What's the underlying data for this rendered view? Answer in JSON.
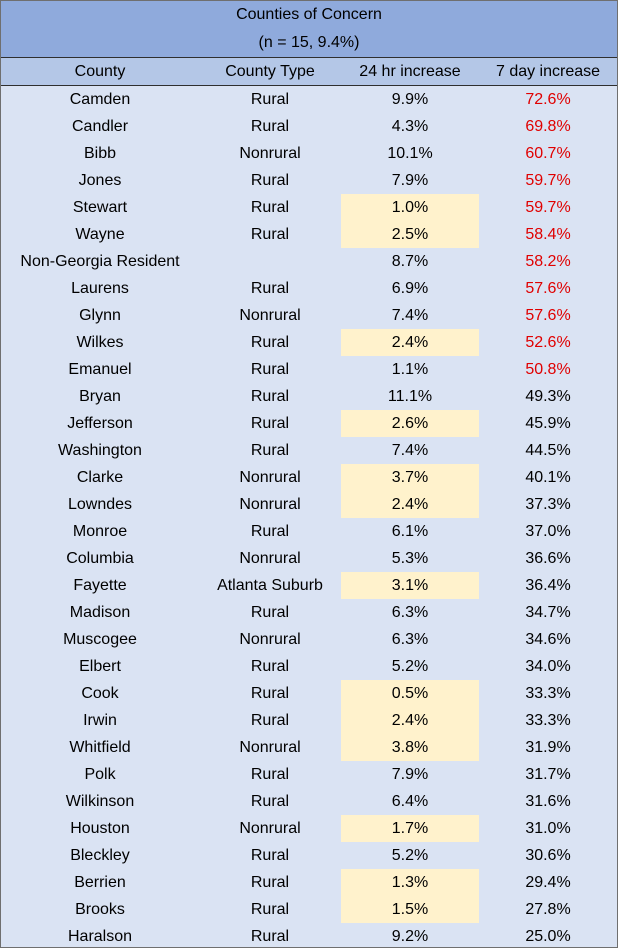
{
  "title": "Counties of Concern",
  "subtitle": "(n = 15, 9.4%)",
  "columns": [
    "County",
    "County Type",
    "24 hr increase",
    "7 day increase"
  ],
  "colors": {
    "header_bg": "#8faadc",
    "column_header_bg": "#b4c7e7",
    "body_bg": "#dae3f3",
    "highlight_bg": "#fff2cc",
    "red_text": "#e00000"
  },
  "rows": [
    {
      "county": "Camden",
      "type": "Rural",
      "h24": "9.9%",
      "d7": "72.6%",
      "hl": false,
      "red": true
    },
    {
      "county": "Candler",
      "type": "Rural",
      "h24": "4.3%",
      "d7": "69.8%",
      "hl": false,
      "red": true
    },
    {
      "county": "Bibb",
      "type": "Nonrural",
      "h24": "10.1%",
      "d7": "60.7%",
      "hl": false,
      "red": true
    },
    {
      "county": "Jones",
      "type": "Rural",
      "h24": "7.9%",
      "d7": "59.7%",
      "hl": false,
      "red": true
    },
    {
      "county": "Stewart",
      "type": "Rural",
      "h24": "1.0%",
      "d7": "59.7%",
      "hl": true,
      "red": true
    },
    {
      "county": "Wayne",
      "type": "Rural",
      "h24": "2.5%",
      "d7": "58.4%",
      "hl": true,
      "red": true
    },
    {
      "county": "Non-Georgia Resident",
      "type": "",
      "h24": "8.7%",
      "d7": "58.2%",
      "hl": false,
      "red": true
    },
    {
      "county": "Laurens",
      "type": "Rural",
      "h24": "6.9%",
      "d7": "57.6%",
      "hl": false,
      "red": true
    },
    {
      "county": "Glynn",
      "type": "Nonrural",
      "h24": "7.4%",
      "d7": "57.6%",
      "hl": false,
      "red": true
    },
    {
      "county": "Wilkes",
      "type": "Rural",
      "h24": "2.4%",
      "d7": "52.6%",
      "hl": true,
      "red": true
    },
    {
      "county": "Emanuel",
      "type": "Rural",
      "h24": "1.1%",
      "d7": "50.8%",
      "hl": false,
      "red": true
    },
    {
      "county": "Bryan",
      "type": "Rural",
      "h24": "11.1%",
      "d7": "49.3%",
      "hl": false,
      "red": false
    },
    {
      "county": "Jefferson",
      "type": "Rural",
      "h24": "2.6%",
      "d7": "45.9%",
      "hl": true,
      "red": false
    },
    {
      "county": "Washington",
      "type": "Rural",
      "h24": "7.4%",
      "d7": "44.5%",
      "hl": false,
      "red": false
    },
    {
      "county": "Clarke",
      "type": "Nonrural",
      "h24": "3.7%",
      "d7": "40.1%",
      "hl": true,
      "red": false
    },
    {
      "county": "Lowndes",
      "type": "Nonrural",
      "h24": "2.4%",
      "d7": "37.3%",
      "hl": true,
      "red": false
    },
    {
      "county": "Monroe",
      "type": "Rural",
      "h24": "6.1%",
      "d7": "37.0%",
      "hl": false,
      "red": false
    },
    {
      "county": "Columbia",
      "type": "Nonrural",
      "h24": "5.3%",
      "d7": "36.6%",
      "hl": false,
      "red": false
    },
    {
      "county": "Fayette",
      "type": "Atlanta Suburb",
      "h24": "3.1%",
      "d7": "36.4%",
      "hl": true,
      "red": false
    },
    {
      "county": "Madison",
      "type": "Rural",
      "h24": "6.3%",
      "d7": "34.7%",
      "hl": false,
      "red": false
    },
    {
      "county": "Muscogee",
      "type": "Nonrural",
      "h24": "6.3%",
      "d7": "34.6%",
      "hl": false,
      "red": false
    },
    {
      "county": "Elbert",
      "type": "Rural",
      "h24": "5.2%",
      "d7": "34.0%",
      "hl": false,
      "red": false
    },
    {
      "county": "Cook",
      "type": "Rural",
      "h24": "0.5%",
      "d7": "33.3%",
      "hl": true,
      "red": false
    },
    {
      "county": "Irwin",
      "type": "Rural",
      "h24": "2.4%",
      "d7": "33.3%",
      "hl": true,
      "red": false
    },
    {
      "county": "Whitfield",
      "type": "Nonrural",
      "h24": "3.8%",
      "d7": "31.9%",
      "hl": true,
      "red": false
    },
    {
      "county": "Polk",
      "type": "Rural",
      "h24": "7.9%",
      "d7": "31.7%",
      "hl": false,
      "red": false
    },
    {
      "county": "Wilkinson",
      "type": "Rural",
      "h24": "6.4%",
      "d7": "31.6%",
      "hl": false,
      "red": false
    },
    {
      "county": "Houston",
      "type": "Nonrural",
      "h24": "1.7%",
      "d7": "31.0%",
      "hl": true,
      "red": false
    },
    {
      "county": "Bleckley",
      "type": "Rural",
      "h24": "5.2%",
      "d7": "30.6%",
      "hl": false,
      "red": false
    },
    {
      "county": "Berrien",
      "type": "Rural",
      "h24": "1.3%",
      "d7": "29.4%",
      "hl": true,
      "red": false
    },
    {
      "county": "Brooks",
      "type": "Rural",
      "h24": "1.5%",
      "d7": "27.8%",
      "hl": true,
      "red": false
    },
    {
      "county": "Haralson",
      "type": "Rural",
      "h24": "9.2%",
      "d7": "25.0%",
      "hl": false,
      "red": false
    }
  ]
}
